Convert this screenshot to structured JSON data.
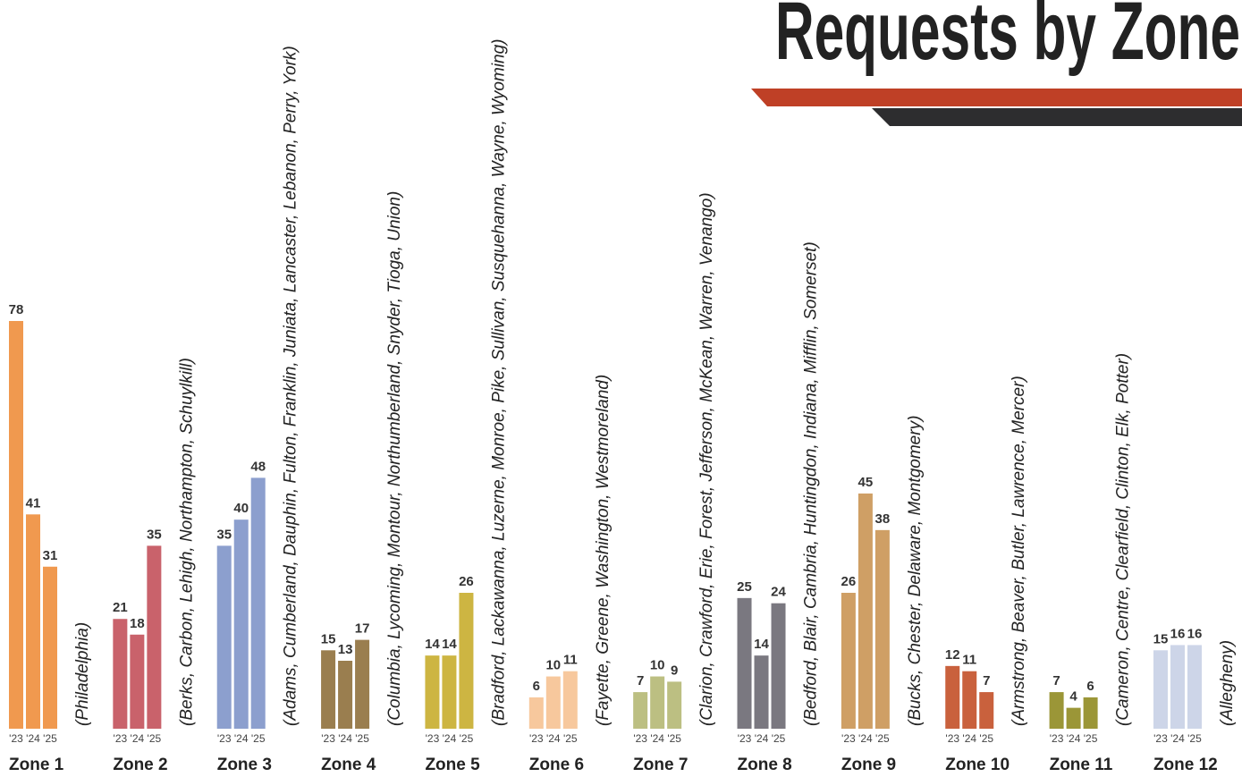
{
  "chart_data": {
    "type": "bar",
    "title": "Requests by Zone",
    "categories": [
      "Zone 1",
      "Zone 2",
      "Zone 3",
      "Zone 4",
      "Zone 5",
      "Zone 6",
      "Zone 7",
      "Zone 8",
      "Zone 9",
      "Zone 10",
      "Zone 11",
      "Zone 12"
    ],
    "counties": [
      "(Philadelphia)",
      "(Berks, Carbon, Lehigh, Northampton, Schuylkill)",
      "(Adams, Cumberland, Dauphin, Fulton, Franklin, Juniata, Lancaster, Lebanon, Perry, York)",
      "(Columbia, Lycoming, Montour, Northumberland, Snyder, Tioga, Union)",
      "(Bradford, Lackawanna, Luzerne, Monroe, Pike, Sullivan, Susquehanna, Wayne, Wyoming)",
      "(Fayette, Greene, Washington, Westmoreland)",
      "(Clarion, Crawford, Erie, Forest, Jefferson, McKean, Warren, Venango)",
      "(Bedford, Blair, Cambria, Huntingdon, Indiana, Mifflin, Somerset)",
      "(Bucks, Chester, Delaware, Montgomery)",
      "(Armstrong, Beaver, Butler, Lawrence, Mercer)",
      "(Cameron, Centre, Clearfield, Clinton, Elk, Potter)",
      "(Allegheny)"
    ],
    "colors": [
      "#f0994f",
      "#c9626b",
      "#8c9fce",
      "#9a7e4f",
      "#cdb542",
      "#f7c89d",
      "#bcbf82",
      "#7a7880",
      "#cf9f65",
      "#c9613d",
      "#9b9637",
      "#cdd5e8"
    ],
    "series": [
      {
        "name": "'23",
        "values": [
          78,
          21,
          35,
          15,
          14,
          6,
          7,
          25,
          26,
          12,
          7,
          15
        ]
      },
      {
        "name": "'24",
        "values": [
          41,
          18,
          40,
          13,
          14,
          10,
          10,
          14,
          45,
          11,
          4,
          16
        ]
      },
      {
        "name": "'25",
        "values": [
          31,
          35,
          48,
          17,
          26,
          11,
          9,
          24,
          38,
          7,
          6,
          16
        ]
      }
    ]
  }
}
